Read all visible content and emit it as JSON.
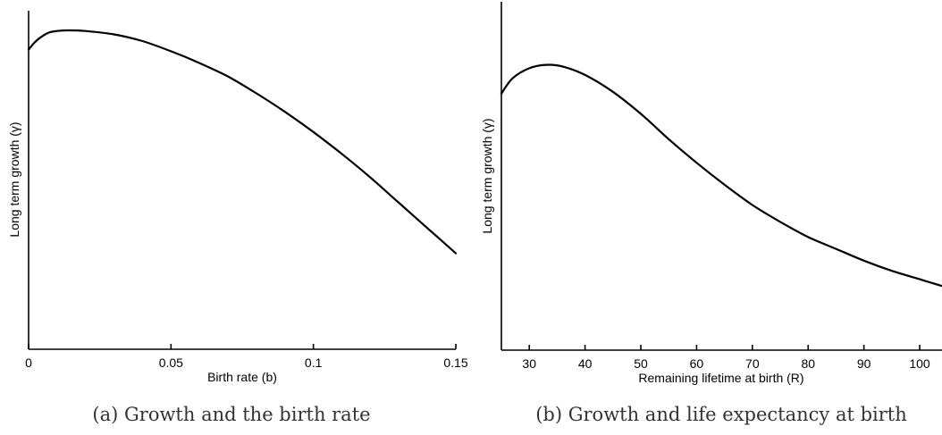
{
  "chart_data": [
    {
      "type": "line",
      "xlabel": "Birth rate (b)",
      "ylabel": "Long term growth (γ)",
      "caption": "(a) Growth and the birth rate",
      "xlim": [
        0,
        0.15
      ],
      "ylim": [
        0,
        1
      ],
      "xticks": [
        0,
        0.05,
        0.1,
        0.15
      ],
      "xtick_labels": [
        "0",
        "0.05",
        "0.1",
        "0.15"
      ],
      "y_ticks_shown": false,
      "grid": false,
      "series": [
        {
          "x": [
            0,
            0.002,
            0.004,
            0.007,
            0.01,
            0.014,
            0.02,
            0.03,
            0.04,
            0.05,
            0.06,
            0.07,
            0.08,
            0.09,
            0.1,
            0.11,
            0.12,
            0.13,
            0.14,
            0.15
          ],
          "y": [
            0.89,
            0.91,
            0.925,
            0.94,
            0.945,
            0.947,
            0.945,
            0.935,
            0.915,
            0.885,
            0.85,
            0.81,
            0.76,
            0.705,
            0.645,
            0.58,
            0.51,
            0.435,
            0.36,
            0.285
          ]
        }
      ]
    },
    {
      "type": "line",
      "xlabel": "Remaining lifetime at birth (R)",
      "ylabel": "Long term growth (γ)",
      "caption": "(b) Growth and life expectancy at birth",
      "xlim": [
        25,
        104
      ],
      "ylim": [
        0,
        1
      ],
      "xticks": [
        30,
        40,
        50,
        60,
        70,
        80,
        90,
        100
      ],
      "xtick_labels": [
        "30",
        "40",
        "50",
        "60",
        "70",
        "80",
        "90",
        "100"
      ],
      "y_ticks_shown": false,
      "grid": false,
      "series": [
        {
          "x": [
            25,
            27,
            30,
            33,
            36,
            40,
            45,
            50,
            55,
            60,
            65,
            70,
            75,
            80,
            85,
            90,
            95,
            100,
            104
          ],
          "y": [
            0.76,
            0.805,
            0.835,
            0.845,
            0.84,
            0.815,
            0.765,
            0.7,
            0.625,
            0.555,
            0.49,
            0.43,
            0.38,
            0.335,
            0.3,
            0.265,
            0.235,
            0.21,
            0.19
          ]
        }
      ]
    }
  ]
}
